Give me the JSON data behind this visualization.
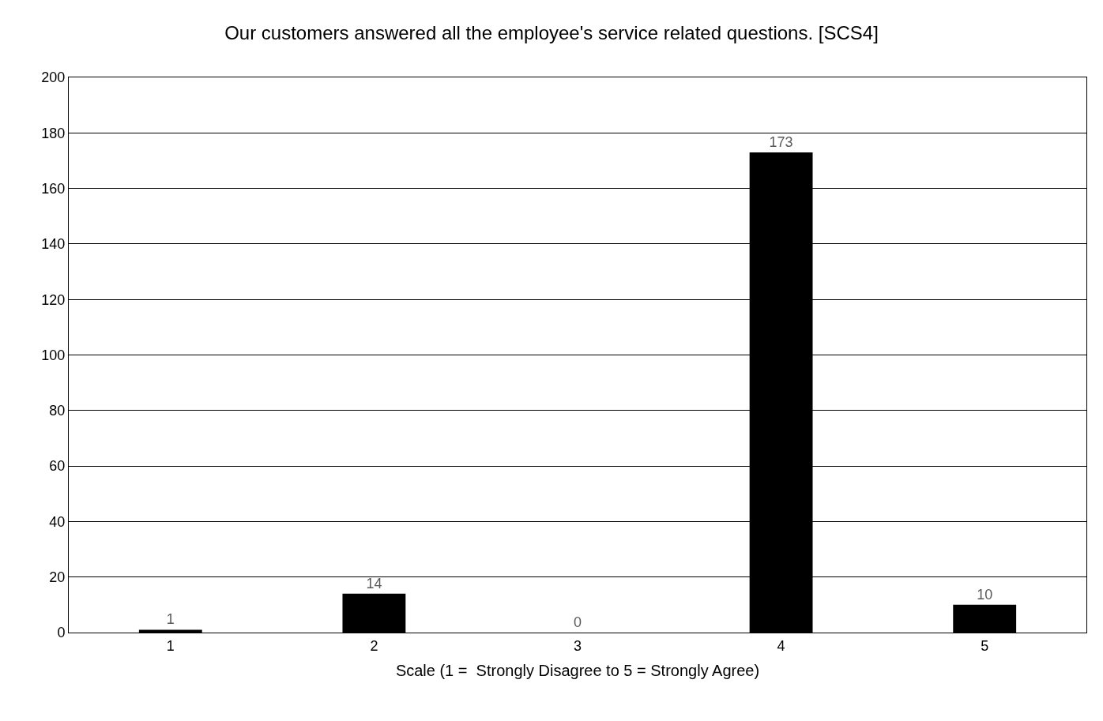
{
  "chart_data": {
    "type": "bar",
    "title": "Our customers answered all the employee's service related questions. [SCS4]",
    "xlabel": "Scale (1 =  Strongly Disagree to 5 = Strongly Agree)",
    "categories": [
      "1",
      "2",
      "3",
      "4",
      "5"
    ],
    "values": [
      1,
      14,
      0,
      173,
      10
    ],
    "color": "#000000",
    "ylim": [
      0,
      200
    ],
    "yticks": [
      0,
      20,
      40,
      60,
      80,
      100,
      120,
      140,
      160,
      180,
      200
    ],
    "grid": "y",
    "data_labels": true
  }
}
